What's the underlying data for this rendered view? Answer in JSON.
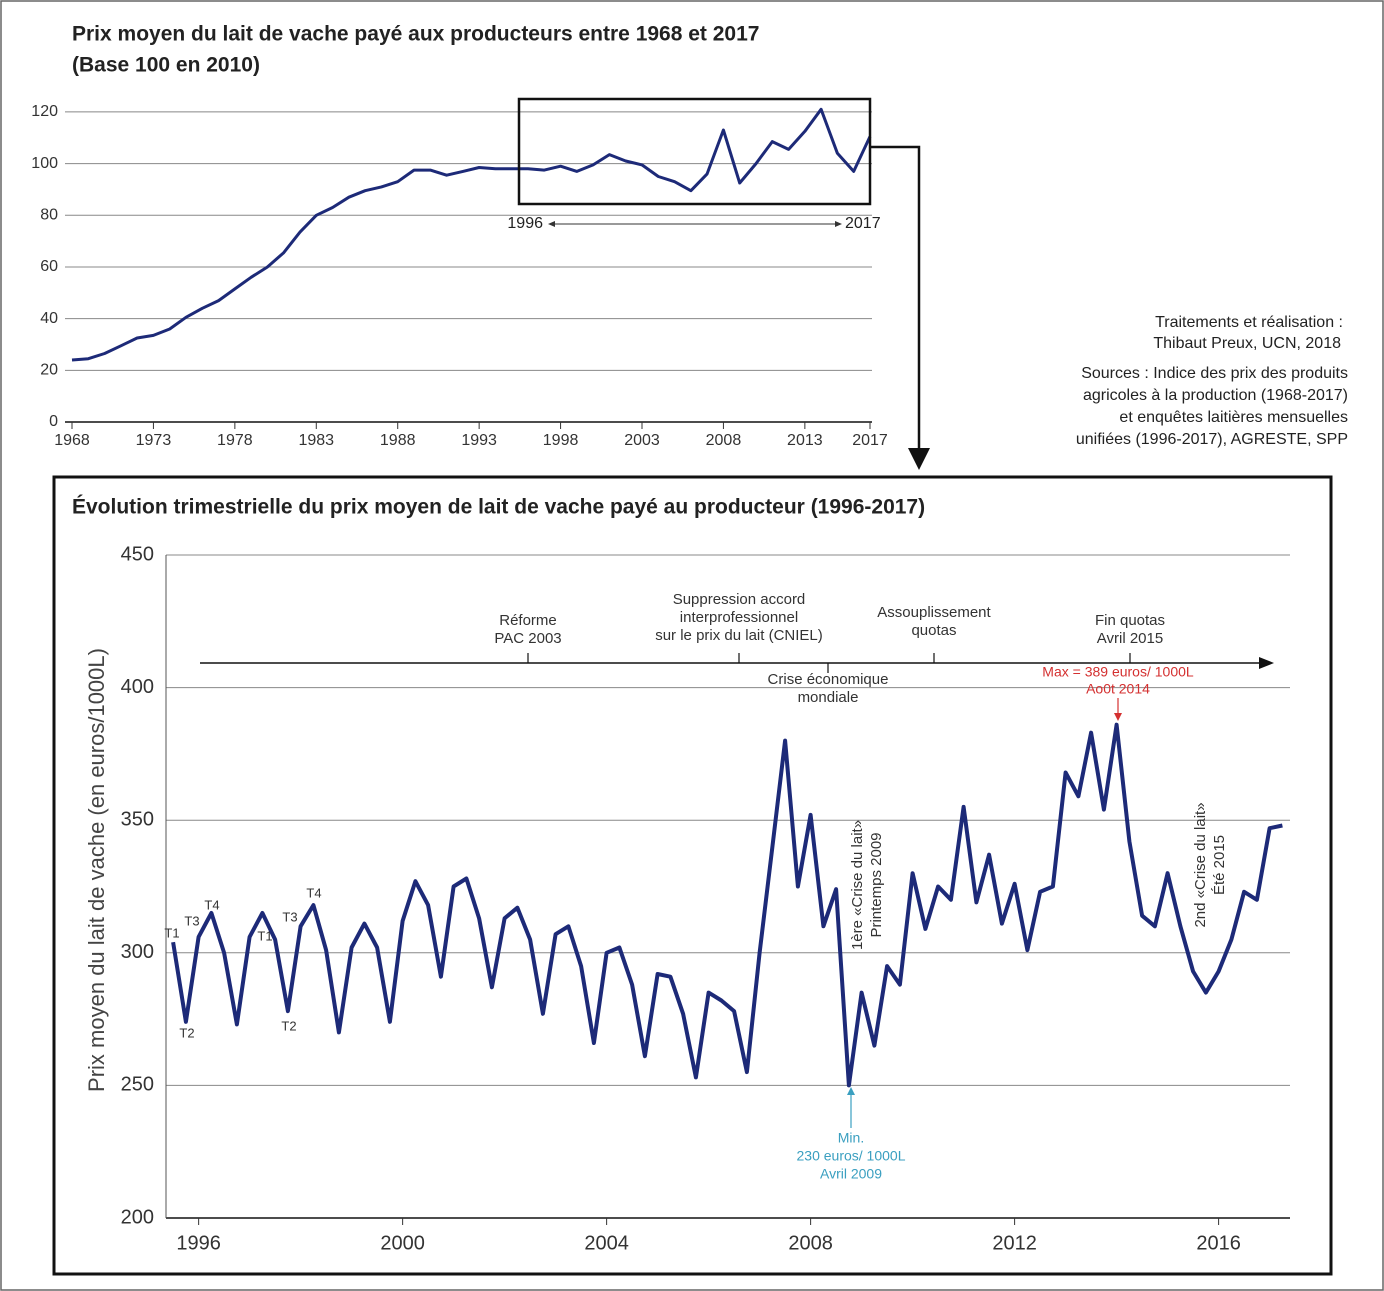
{
  "chart_data": [
    {
      "type": "line",
      "title": "Prix moyen du lait de vache payé aux producteurs entre 1968 et 2017",
      "subtitle": "(Base 100 en 2010)",
      "x": [
        1968,
        1969,
        1970,
        1971,
        1972,
        1973,
        1974,
        1975,
        1976,
        1977,
        1978,
        1979,
        1980,
        1981,
        1982,
        1983,
        1984,
        1985,
        1986,
        1987,
        1988,
        1989,
        1990,
        1991,
        1992,
        1993,
        1994,
        1995,
        1996,
        1997,
        1998,
        1999,
        2000,
        2001,
        2002,
        2003,
        2004,
        2005,
        2006,
        2007,
        2008,
        2009,
        2010,
        2011,
        2012,
        2013,
        2014,
        2015,
        2016,
        2017
      ],
      "series": [
        {
          "color": "#1d2a78",
          "values": [
            24,
            24.5,
            26.5,
            29.5,
            32.5,
            33.5,
            36,
            40.5,
            44,
            47,
            51.5,
            56,
            60,
            65.5,
            73.5,
            80,
            83,
            87,
            89.5,
            91,
            93,
            97.5,
            97.5,
            95.5,
            97,
            98.5,
            98,
            98,
            98,
            97.5,
            99,
            97,
            99.5,
            103.5,
            101,
            99.5,
            95,
            93,
            89.5,
            96,
            113,
            92.5,
            100,
            108.5,
            105.5,
            112.5,
            121,
            104,
            97,
            110.5
          ]
        }
      ],
      "xlim": [
        1968,
        2017
      ],
      "xticks": [
        1968,
        1973,
        1978,
        1983,
        1988,
        1993,
        1998,
        2003,
        2008,
        2013,
        2017
      ],
      "ylim": [
        0,
        125
      ],
      "yticks": [
        0,
        20,
        40,
        60,
        80,
        100,
        120
      ],
      "grid": true,
      "range_labels": [
        1996,
        2017
      ]
    },
    {
      "type": "line",
      "title": "Évolution trimestrielle du prix moyen de lait de vache payé au producteur (1996-2017)",
      "y_label": "Prix moyen du lait de vache (en euros/1000L)",
      "x": [
        1996,
        1996.25,
        1996.5,
        1996.75,
        1997,
        1997.25,
        1997.5,
        1997.75,
        1998,
        1998.25,
        1998.5,
        1998.75,
        1999,
        1999.25,
        1999.5,
        1999.75,
        2000,
        2000.25,
        2000.5,
        2000.75,
        2001,
        2001.25,
        2001.5,
        2001.75,
        2002,
        2002.25,
        2002.5,
        2002.75,
        2003,
        2003.25,
        2003.5,
        2003.75,
        2004,
        2004.25,
        2004.5,
        2004.75,
        2005,
        2005.25,
        2005.5,
        2005.75,
        2006,
        2006.25,
        2006.5,
        2006.75,
        2007,
        2007.25,
        2007.5,
        2007.75,
        2008,
        2008.25,
        2008.5,
        2008.75,
        2009,
        2009.25,
        2009.5,
        2009.75,
        2010,
        2010.25,
        2010.5,
        2010.75,
        2011,
        2011.25,
        2011.5,
        2011.75,
        2012,
        2012.25,
        2012.5,
        2012.75,
        2013,
        2013.25,
        2013.5,
        2013.75,
        2014,
        2014.25,
        2014.5,
        2014.75,
        2015,
        2015.25,
        2015.5,
        2015.75,
        2016,
        2016.25,
        2016.5,
        2016.75,
        2017,
        2017.25,
        2017.5,
        2017.75
      ],
      "series": [
        {
          "color": "#1d2a78",
          "values": [
            304,
            274,
            306,
            315,
            300,
            273,
            306,
            315,
            305,
            278,
            310,
            318,
            301,
            270,
            302,
            311,
            302,
            274,
            312,
            327,
            318,
            291,
            325,
            328,
            313,
            287,
            313,
            317,
            305,
            277,
            307,
            310,
            295,
            266,
            300,
            302,
            288,
            261,
            292,
            291,
            277,
            253,
            285,
            282,
            278,
            255,
            300,
            340,
            380,
            325,
            352,
            310,
            324,
            250,
            285,
            265,
            295,
            288,
            330,
            309,
            325,
            320,
            355,
            319,
            337,
            311,
            326,
            301,
            323,
            325,
            368,
            359,
            383,
            354,
            386,
            342,
            314,
            310,
            330,
            310,
            293,
            285,
            293,
            305,
            323,
            320,
            347,
            348
          ]
        }
      ],
      "xlim": [
        1995.86,
        2017.9
      ],
      "xticks": [
        {
          "value": 1996.5,
          "label": "1996"
        },
        {
          "value": 2000.5,
          "label": "2000"
        },
        {
          "value": 2004.5,
          "label": "2004"
        },
        {
          "value": 2008.5,
          "label": "2008"
        },
        {
          "value": 2012.5,
          "label": "2012"
        },
        {
          "value": 2016.5,
          "label": "2016"
        }
      ],
      "ylim": [
        200,
        450
      ],
      "yticks": [
        200,
        250,
        300,
        350,
        400,
        450
      ],
      "grid": true,
      "events": [
        [
          "Réforme",
          "PAC 2003"
        ],
        [
          "Suppression accord",
          "interprofessionnel",
          "sur le prix du lait (CNIEL)"
        ],
        [
          "Crise économique",
          "mondiale"
        ],
        [
          "Assouplissement",
          "quotas"
        ],
        [
          "Fin quotas",
          "Avril 2015"
        ]
      ],
      "max_note": [
        "Max = 389 euros/ 1000L",
        "Ao0t 2014"
      ],
      "min_note": [
        "Min.",
        "230 euros/ 1000L",
        "Avril 2009"
      ],
      "crisis_notes": [
        [
          "1ère «Crise du lait»",
          "Printemps 2009"
        ],
        [
          "2nd «Crise du lait»",
          "Été 2015"
        ]
      ],
      "quarter_labels": [
        "T1",
        "T2",
        "T3",
        "T4",
        "T1",
        "T2",
        "T3",
        "T4"
      ]
    }
  ],
  "credits": [
    "Traitements et réalisation :",
    "Thibaut Preux, UCN, 2018",
    "Sources : Indice des prix des produits",
    "agricoles à la production (1968-2017)",
    "et enquêtes laitières mensuelles",
    "unifiées (1996-2017), AGRESTE, SPP"
  ]
}
